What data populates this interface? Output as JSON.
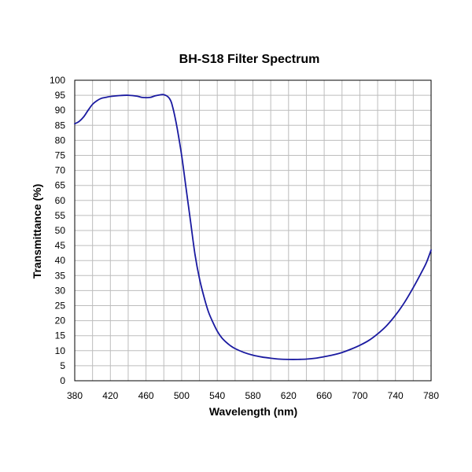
{
  "chart_data": {
    "type": "line",
    "title": "BH-S18 Filter  Spectrum",
    "xlabel": "Wavelength (nm)",
    "ylabel": "Transmittance (%)",
    "xlim": [
      380,
      780
    ],
    "ylim": [
      0,
      100
    ],
    "x_ticks": [
      "380",
      "420",
      "460",
      "500",
      "540",
      "580",
      "620",
      "660",
      "700",
      "740",
      "780"
    ],
    "y_ticks": [
      "0",
      "5",
      "10",
      "15",
      "20",
      "25",
      "30",
      "35",
      "40",
      "45",
      "50",
      "55",
      "60",
      "65",
      "70",
      "75",
      "80",
      "85",
      "90",
      "95",
      "100"
    ],
    "grid": true,
    "legend": "none",
    "series": [
      {
        "color": "#1a1aa0",
        "x": [
          380,
          385,
          390,
          395,
          400,
          405,
          410,
          415,
          420,
          430,
          440,
          450,
          455,
          460,
          465,
          470,
          475,
          480,
          485,
          488,
          490,
          492,
          495,
          500,
          505,
          510,
          515,
          520,
          525,
          530,
          535,
          540,
          545,
          550,
          555,
          560,
          570,
          580,
          590,
          600,
          610,
          620,
          630,
          640,
          650,
          660,
          670,
          680,
          690,
          700,
          710,
          720,
          730,
          740,
          750,
          760,
          770,
          775,
          780
        ],
        "y": [
          85.5,
          86.3,
          87.8,
          90,
          92,
          93.2,
          94,
          94.3,
          94.6,
          94.9,
          95,
          94.7,
          94.3,
          94.2,
          94.3,
          94.8,
          95.1,
          95.2,
          94.4,
          93,
          91,
          88.5,
          84,
          75,
          64,
          53,
          42,
          34,
          28,
          23,
          19.5,
          16.5,
          14.3,
          12.8,
          11.6,
          10.7,
          9.4,
          8.5,
          7.9,
          7.5,
          7.2,
          7.1,
          7.1,
          7.2,
          7.5,
          8,
          8.6,
          9.4,
          10.5,
          11.8,
          13.4,
          15.6,
          18.3,
          21.8,
          26,
          31,
          36.5,
          39.5,
          43.5
        ]
      }
    ]
  }
}
